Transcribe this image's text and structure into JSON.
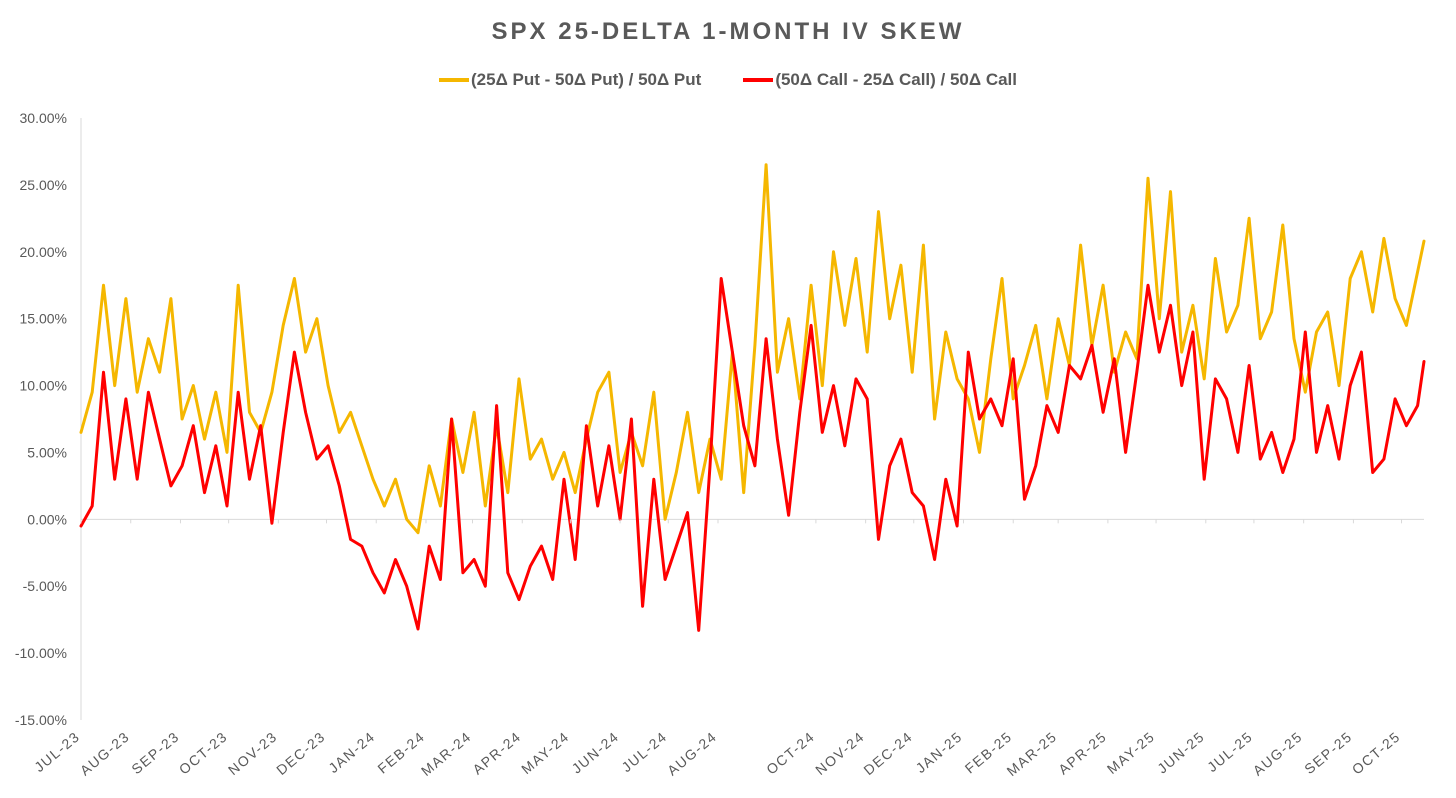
{
  "chart_data": {
    "type": "line",
    "title": "SPX 25-DELTA 1-MONTH IV SKEW",
    "xlabel": "",
    "ylabel": "",
    "ylim": [
      -15,
      30
    ],
    "y_ticks": [
      "30.00%",
      "25.00%",
      "20.00%",
      "15.00%",
      "10.00%",
      "5.00%",
      "0.00%",
      "-5.00%",
      "-10.00%",
      "-15.00%"
    ],
    "y_tick_values": [
      30,
      25,
      20,
      15,
      10,
      5,
      0,
      -5,
      -10,
      -15
    ],
    "x_ticks": [
      "JUL-23",
      "AUG-23",
      "SEP-23",
      "OCT-23",
      "NOV-23",
      "DEC-23",
      "JAN-24",
      "FEB-24",
      "MAR-24",
      "APR-24",
      "MAY-24",
      "JUN-24",
      "JUL-24",
      "AUG-24",
      "OCT-24",
      "NOV-24",
      "DEC-24",
      "JAN-25",
      "FEB-25",
      "MAR-25",
      "APR-25",
      "MAY-25",
      "JUN-25",
      "JUL-25",
      "AUG-25",
      "SEP-25",
      "OCT-25"
    ],
    "x_tick_dates": [
      "2023-07-01",
      "2023-08-01",
      "2023-09-01",
      "2023-10-01",
      "2023-11-01",
      "2023-12-01",
      "2024-01-01",
      "2024-02-01",
      "2024-03-01",
      "2024-04-01",
      "2024-05-01",
      "2024-06-01",
      "2024-07-01",
      "2024-08-01",
      "2024-10-01",
      "2024-11-01",
      "2024-12-01",
      "2025-01-01",
      "2025-02-01",
      "2025-03-01",
      "2025-04-01",
      "2025-05-01",
      "2025-06-01",
      "2025-07-01",
      "2025-08-01",
      "2025-09-01",
      "2025-10-01"
    ],
    "x_range": [
      "2023-07-01",
      "2025-10-15"
    ],
    "grid": false,
    "legend_position": "top",
    "series": [
      {
        "name": "(25Δ Put - 50Δ Put) / 50Δ Put",
        "color": "#F5B700",
        "x": [
          "2023-07-01",
          "2023-07-08",
          "2023-07-15",
          "2023-07-22",
          "2023-07-29",
          "2023-08-05",
          "2023-08-12",
          "2023-08-19",
          "2023-08-26",
          "2023-09-02",
          "2023-09-09",
          "2023-09-16",
          "2023-09-23",
          "2023-09-30",
          "2023-10-07",
          "2023-10-14",
          "2023-10-21",
          "2023-10-28",
          "2023-11-04",
          "2023-11-11",
          "2023-11-18",
          "2023-11-25",
          "2023-12-02",
          "2023-12-09",
          "2023-12-16",
          "2023-12-23",
          "2023-12-30",
          "2024-01-06",
          "2024-01-13",
          "2024-01-20",
          "2024-01-27",
          "2024-02-03",
          "2024-02-10",
          "2024-02-17",
          "2024-02-24",
          "2024-03-02",
          "2024-03-09",
          "2024-03-16",
          "2024-03-23",
          "2024-03-30",
          "2024-04-06",
          "2024-04-13",
          "2024-04-20",
          "2024-04-27",
          "2024-05-04",
          "2024-05-11",
          "2024-05-18",
          "2024-05-25",
          "2024-06-01",
          "2024-06-08",
          "2024-06-15",
          "2024-06-22",
          "2024-06-29",
          "2024-07-06",
          "2024-07-13",
          "2024-07-20",
          "2024-07-27",
          "2024-08-03",
          "2024-08-10",
          "2024-08-17",
          "2024-08-24",
          "2024-08-31",
          "2024-09-07",
          "2024-09-14",
          "2024-09-21",
          "2024-09-28",
          "2024-10-05",
          "2024-10-12",
          "2024-10-19",
          "2024-10-26",
          "2024-11-02",
          "2024-11-09",
          "2024-11-16",
          "2024-11-23",
          "2024-11-30",
          "2024-12-07",
          "2024-12-14",
          "2024-12-21",
          "2024-12-28",
          "2025-01-04",
          "2025-01-11",
          "2025-01-18",
          "2025-01-25",
          "2025-02-01",
          "2025-02-08",
          "2025-02-15",
          "2025-02-22",
          "2025-03-01",
          "2025-03-08",
          "2025-03-15",
          "2025-03-22",
          "2025-03-29",
          "2025-04-05",
          "2025-04-12",
          "2025-04-19",
          "2025-04-26",
          "2025-05-03",
          "2025-05-10",
          "2025-05-17",
          "2025-05-24",
          "2025-05-31",
          "2025-06-07",
          "2025-06-14",
          "2025-06-21",
          "2025-06-28",
          "2025-07-05",
          "2025-07-12",
          "2025-07-19",
          "2025-07-26",
          "2025-08-02",
          "2025-08-09",
          "2025-08-16",
          "2025-08-23",
          "2025-08-30",
          "2025-09-06",
          "2025-09-13",
          "2025-09-20",
          "2025-09-27",
          "2025-10-04",
          "2025-10-11",
          "2025-10-15"
        ],
        "values": [
          6.5,
          9.5,
          17.5,
          10.0,
          16.5,
          9.5,
          13.5,
          11.0,
          16.5,
          7.5,
          10.0,
          6.0,
          9.5,
          5.0,
          17.5,
          8.0,
          6.5,
          9.5,
          14.5,
          18.0,
          12.5,
          15.0,
          10.0,
          6.5,
          8.0,
          5.5,
          3.0,
          1.0,
          3.0,
          0.0,
          -1.0,
          4.0,
          1.0,
          7.5,
          3.5,
          8.0,
          1.0,
          7.0,
          2.0,
          10.5,
          4.5,
          6.0,
          3.0,
          5.0,
          2.0,
          6.0,
          9.5,
          11.0,
          3.5,
          6.5,
          4.0,
          9.5,
          0.0,
          3.5,
          8.0,
          2.0,
          6.0,
          3.0,
          12.5,
          2.0,
          13.0,
          26.5,
          11.0,
          15.0,
          9.0,
          17.5,
          10.0,
          20.0,
          14.5,
          19.5,
          12.5,
          23.0,
          15.0,
          19.0,
          11.0,
          20.5,
          7.5,
          14.0,
          10.5,
          9.0,
          5.0,
          12.0,
          18.0,
          9.0,
          11.5,
          14.5,
          9.0,
          15.0,
          11.5,
          20.5,
          13.0,
          17.5,
          11.0,
          14.0,
          12.0,
          25.5,
          15.0,
          24.5,
          12.5,
          16.0,
          10.5,
          19.5,
          14.0,
          16.0,
          22.5,
          13.5,
          15.5,
          22.0,
          13.5,
          9.5,
          14.0,
          15.5,
          10.0,
          18.0,
          20.0,
          15.5,
          21.0,
          16.5,
          14.5,
          18.5,
          20.8
        ]
      },
      {
        "name": "(50Δ Call - 25Δ Call) / 50Δ Call",
        "color": "#FF0000",
        "x": [
          "2023-07-01",
          "2023-07-08",
          "2023-07-15",
          "2023-07-22",
          "2023-07-29",
          "2023-08-05",
          "2023-08-12",
          "2023-08-19",
          "2023-08-26",
          "2023-09-02",
          "2023-09-09",
          "2023-09-16",
          "2023-09-23",
          "2023-09-30",
          "2023-10-07",
          "2023-10-14",
          "2023-10-21",
          "2023-10-28",
          "2023-11-04",
          "2023-11-11",
          "2023-11-18",
          "2023-11-25",
          "2023-12-02",
          "2023-12-09",
          "2023-12-16",
          "2023-12-23",
          "2023-12-30",
          "2024-01-06",
          "2024-01-13",
          "2024-01-20",
          "2024-01-27",
          "2024-02-03",
          "2024-02-10",
          "2024-02-17",
          "2024-02-24",
          "2024-03-02",
          "2024-03-09",
          "2024-03-16",
          "2024-03-23",
          "2024-03-30",
          "2024-04-06",
          "2024-04-13",
          "2024-04-20",
          "2024-04-27",
          "2024-05-04",
          "2024-05-11",
          "2024-05-18",
          "2024-05-25",
          "2024-06-01",
          "2024-06-08",
          "2024-06-15",
          "2024-06-22",
          "2024-06-29",
          "2024-07-06",
          "2024-07-13",
          "2024-07-20",
          "2024-07-27",
          "2024-08-03",
          "2024-08-10",
          "2024-08-17",
          "2024-08-24",
          "2024-08-31",
          "2024-09-07",
          "2024-09-14",
          "2024-09-21",
          "2024-09-28",
          "2024-10-05",
          "2024-10-12",
          "2024-10-19",
          "2024-10-26",
          "2024-11-02",
          "2024-11-09",
          "2024-11-16",
          "2024-11-23",
          "2024-11-30",
          "2024-12-07",
          "2024-12-14",
          "2024-12-21",
          "2024-12-28",
          "2025-01-04",
          "2025-01-11",
          "2025-01-18",
          "2025-01-25",
          "2025-02-01",
          "2025-02-08",
          "2025-02-15",
          "2025-02-22",
          "2025-03-01",
          "2025-03-08",
          "2025-03-15",
          "2025-03-22",
          "2025-03-29",
          "2025-04-05",
          "2025-04-12",
          "2025-04-19",
          "2025-04-26",
          "2025-05-03",
          "2025-05-10",
          "2025-05-17",
          "2025-05-24",
          "2025-05-31",
          "2025-06-07",
          "2025-06-14",
          "2025-06-21",
          "2025-06-28",
          "2025-07-05",
          "2025-07-12",
          "2025-07-19",
          "2025-07-26",
          "2025-08-02",
          "2025-08-09",
          "2025-08-16",
          "2025-08-23",
          "2025-08-30",
          "2025-09-06",
          "2025-09-13",
          "2025-09-20",
          "2025-09-27",
          "2025-10-04",
          "2025-10-11",
          "2025-10-15"
        ],
        "values": [
          -0.5,
          1.0,
          11.0,
          3.0,
          9.0,
          3.0,
          9.5,
          6.0,
          2.5,
          4.0,
          7.0,
          2.0,
          5.5,
          1.0,
          9.5,
          3.0,
          7.0,
          -0.3,
          6.5,
          12.5,
          8.0,
          4.5,
          5.5,
          2.5,
          -1.5,
          -2.0,
          -4.0,
          -5.5,
          -3.0,
          -5.0,
          -8.2,
          -2.0,
          -4.5,
          7.5,
          -4.0,
          -3.0,
          -5.0,
          8.5,
          -4.0,
          -6.0,
          -3.5,
          -2.0,
          -4.5,
          3.0,
          -3.0,
          7.0,
          1.0,
          5.5,
          0.0,
          7.5,
          -6.5,
          3.0,
          -4.5,
          -2.0,
          0.5,
          -8.3,
          4.0,
          18.0,
          12.5,
          7.0,
          4.0,
          13.5,
          6.0,
          0.3,
          8.0,
          14.5,
          6.5,
          10.0,
          5.5,
          10.5,
          9.0,
          -1.5,
          4.0,
          6.0,
          2.0,
          1.0,
          -3.0,
          3.0,
          -0.5,
          12.5,
          7.5,
          9.0,
          7.0,
          12.0,
          1.5,
          4.0,
          8.5,
          6.5,
          11.5,
          10.5,
          13.0,
          8.0,
          12.0,
          5.0,
          11.0,
          17.5,
          12.5,
          16.0,
          10.0,
          14.0,
          3.0,
          10.5,
          9.0,
          5.0,
          11.5,
          4.5,
          6.5,
          3.5,
          6.0,
          14.0,
          5.0,
          8.5,
          4.5,
          10.0,
          12.5,
          3.5,
          4.5,
          9.0,
          7.0,
          8.5,
          11.8
        ]
      }
    ]
  }
}
